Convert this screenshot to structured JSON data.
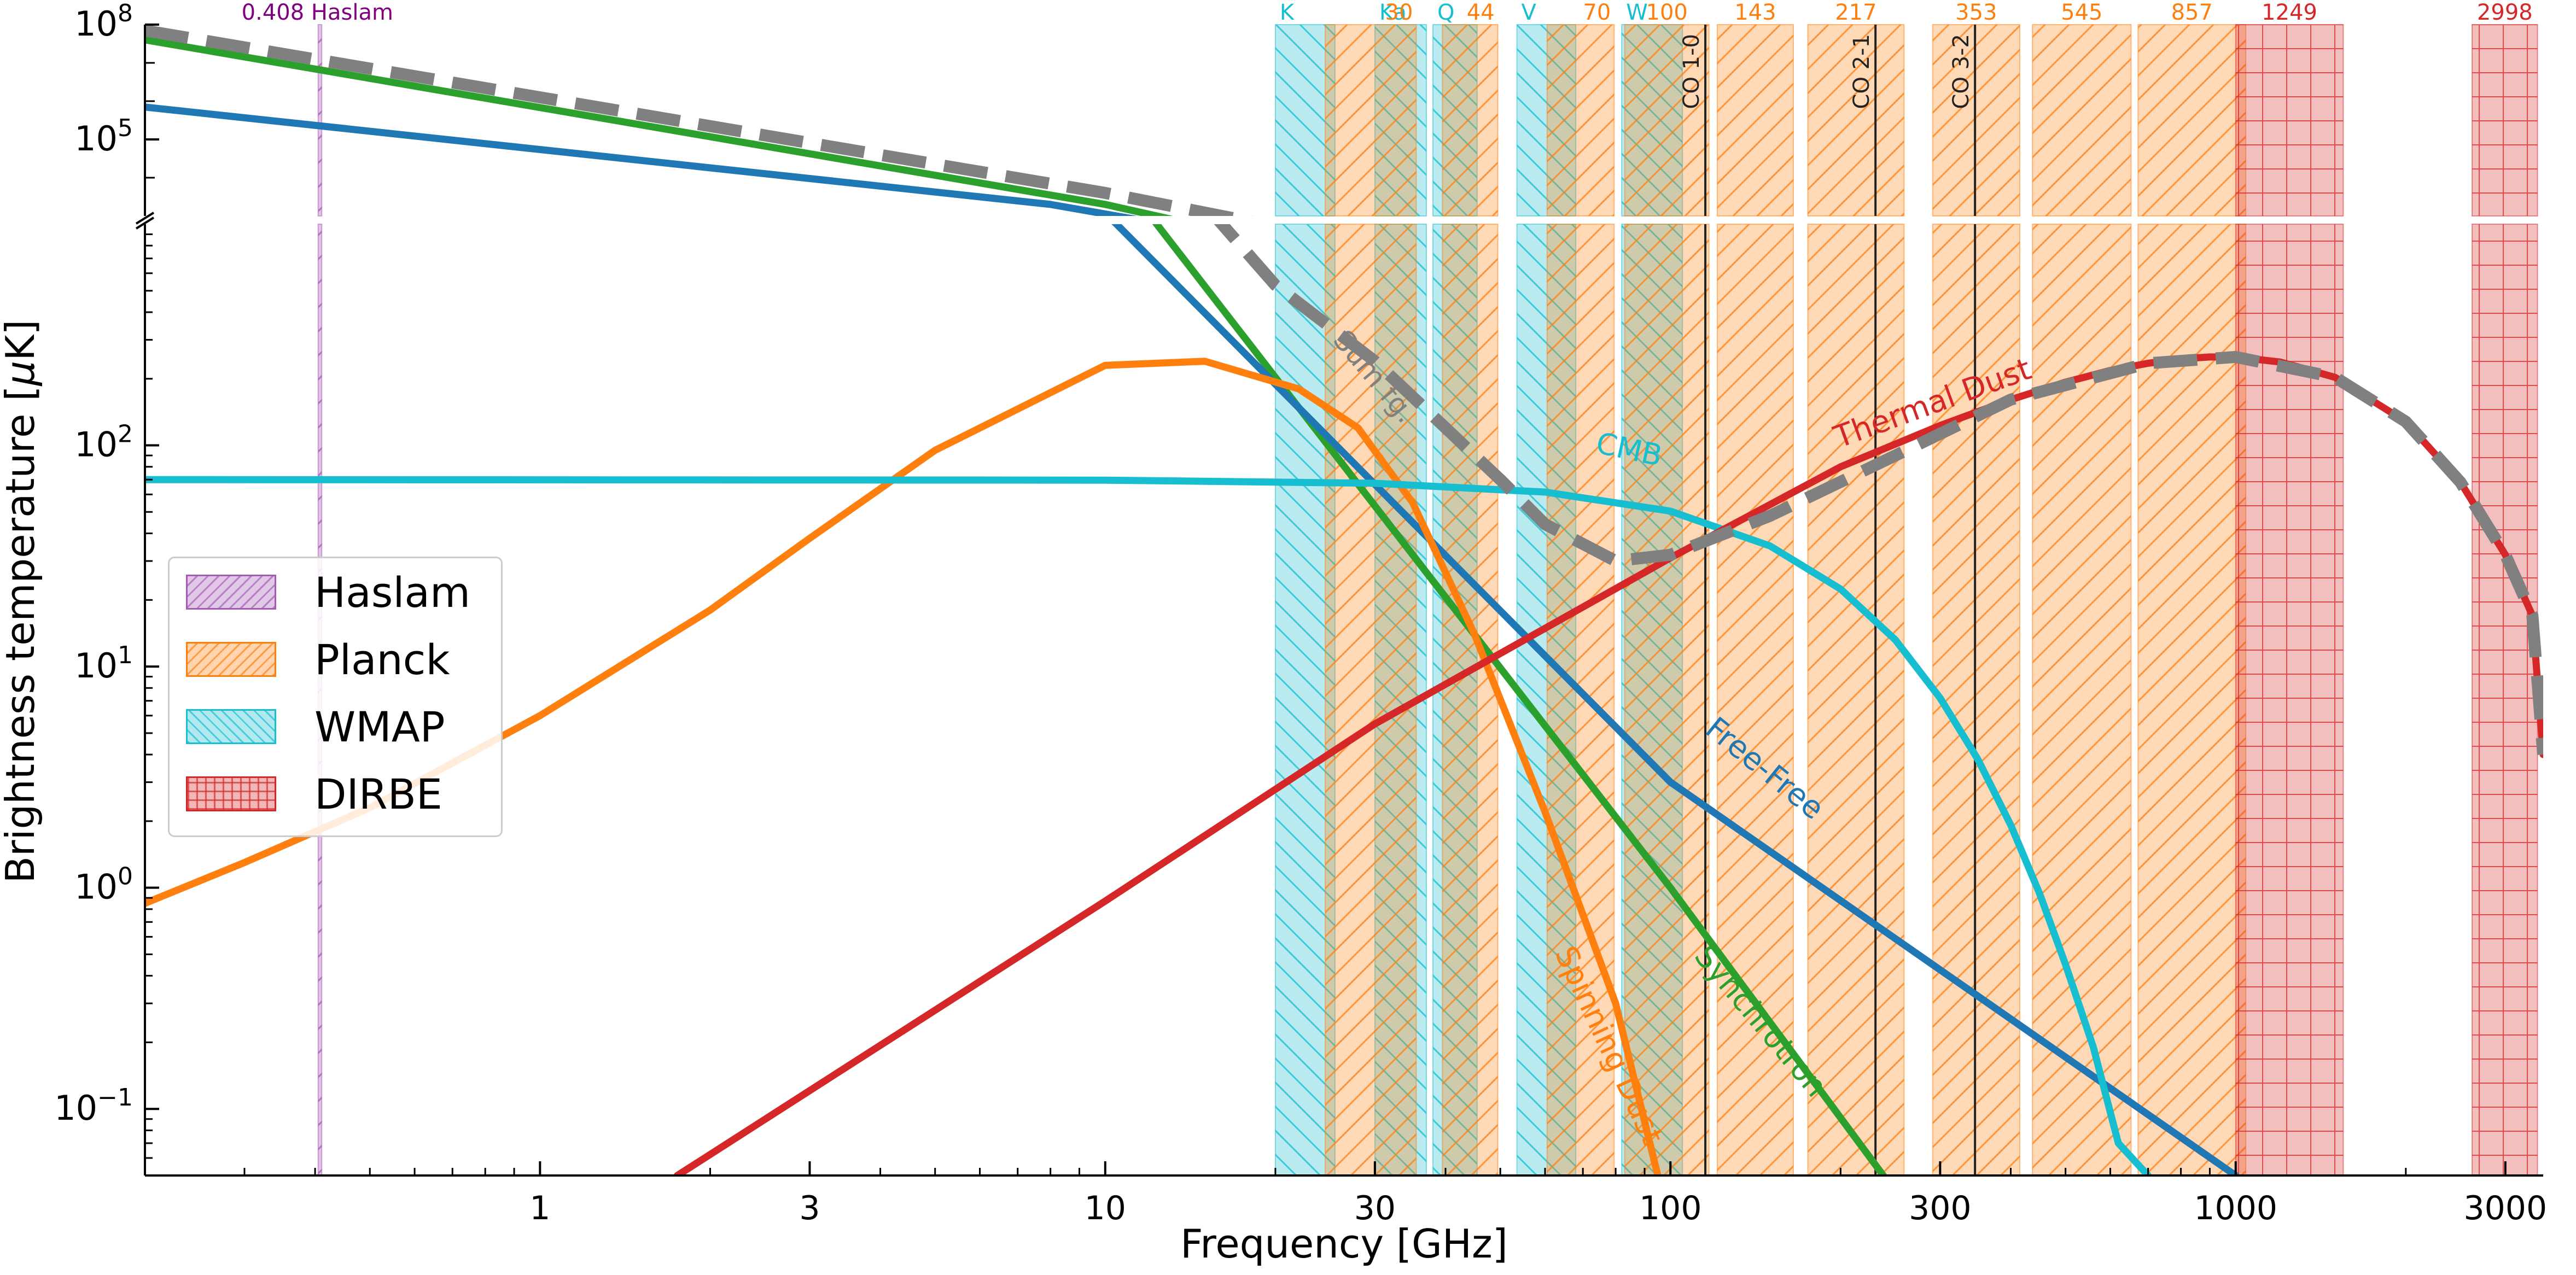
{
  "chart_data": {
    "type": "line",
    "title": "",
    "xlabel": "Frequency [GHz]",
    "ylabel": "Brightness temperature [μK]",
    "ylabel_parts": {
      "prefix": "Brightness temperature [",
      "mu": "μ",
      "suffix": "K]"
    },
    "xscale": "log",
    "yscale": "log, broken axis",
    "xlim": [
      0.2,
      3500
    ],
    "ylim_lower": [
      0.05,
      1000
    ],
    "ylim_upper": [
      1000,
      100000000
    ],
    "x_ticks": [
      {
        "value": 1,
        "label": "1"
      },
      {
        "value": 3,
        "label": "3"
      },
      {
        "value": 10,
        "label": "10"
      },
      {
        "value": 30,
        "label": "30"
      },
      {
        "value": 100,
        "label": "100"
      },
      {
        "value": 300,
        "label": "300"
      },
      {
        "value": 1000,
        "label": "1000"
      },
      {
        "value": 3000,
        "label": "3000"
      }
    ],
    "y_ticks_lower": [
      {
        "value": 0.1,
        "base": "10",
        "exp": "−1"
      },
      {
        "value": 1,
        "base": "10",
        "exp": "0"
      },
      {
        "value": 10,
        "base": "10",
        "exp": "1"
      },
      {
        "value": 100,
        "base": "10",
        "exp": "2"
      }
    ],
    "y_ticks_upper": [
      {
        "value": 100000,
        "base": "10",
        "exp": "5"
      },
      {
        "value": 100000000,
        "base": "10",
        "exp": "8"
      }
    ],
    "bands": [
      {
        "name": "Haslam",
        "label": "0.408 Haslam",
        "x0": 0.405,
        "x1": 0.411,
        "color": "#a55ab5",
        "hatch": "diag-down",
        "label_color": "#800080"
      },
      {
        "name": "WMAP",
        "label": "K",
        "x0": 20.0,
        "x1": 25.5,
        "color": "#17becf",
        "hatch": "diag-up",
        "label_color": "#17becf"
      },
      {
        "name": "WMAP",
        "label": "Ka",
        "x0": 30.0,
        "x1": 37.0,
        "color": "#17becf",
        "hatch": "diag-up",
        "label_color": "#17becf"
      },
      {
        "name": "WMAP",
        "label": "Q",
        "x0": 38.0,
        "x1": 45.5,
        "color": "#17becf",
        "hatch": "diag-up",
        "label_color": "#17becf"
      },
      {
        "name": "WMAP",
        "label": "V",
        "x0": 53.5,
        "x1": 68.0,
        "color": "#17becf",
        "hatch": "diag-up",
        "label_color": "#17becf"
      },
      {
        "name": "WMAP",
        "label": "W",
        "x0": 82.0,
        "x1": 105.0,
        "color": "#17becf",
        "hatch": "diag-up",
        "label_color": "#17becf"
      },
      {
        "name": "Planck",
        "label": "30",
        "x0": 24.5,
        "x1": 35.5,
        "color": "#ff7f0e",
        "hatch": "diag-down",
        "label_color": "#ff7f0e"
      },
      {
        "name": "Planck",
        "label": "44",
        "x0": 39.5,
        "x1": 49.5,
        "color": "#ff7f0e",
        "hatch": "diag-down",
        "label_color": "#ff7f0e"
      },
      {
        "name": "Planck",
        "label": "70",
        "x0": 60.5,
        "x1": 79.5,
        "color": "#ff7f0e",
        "hatch": "diag-down",
        "label_color": "#ff7f0e"
      },
      {
        "name": "Planck",
        "label": "100",
        "x0": 83.0,
        "x1": 117.0,
        "color": "#ff7f0e",
        "hatch": "diag-down",
        "label_color": "#ff7f0e"
      },
      {
        "name": "Planck",
        "label": "143",
        "x0": 121.0,
        "x1": 165.0,
        "color": "#ff7f0e",
        "hatch": "diag-down",
        "label_color": "#ff7f0e"
      },
      {
        "name": "Planck",
        "label": "217",
        "x0": 175.0,
        "x1": 259.0,
        "color": "#ff7f0e",
        "hatch": "diag-down",
        "label_color": "#ff7f0e"
      },
      {
        "name": "Planck",
        "label": "353",
        "x0": 291.0,
        "x1": 415.0,
        "color": "#ff7f0e",
        "hatch": "diag-down",
        "label_color": "#ff7f0e"
      },
      {
        "name": "Planck",
        "label": "545",
        "x0": 437.0,
        "x1": 653.0,
        "color": "#ff7f0e",
        "hatch": "diag-down",
        "label_color": "#ff7f0e"
      },
      {
        "name": "Planck",
        "label": "857",
        "x0": 672.0,
        "x1": 1042.0,
        "color": "#ff7f0e",
        "hatch": "diag-down",
        "label_color": "#ff7f0e"
      },
      {
        "name": "DIRBE",
        "label": "1249",
        "x0": 1000.0,
        "x1": 1550.0,
        "color": "#d62728",
        "hatch": "grid",
        "label_color": "#d62728"
      },
      {
        "name": "DIRBE",
        "label": "2998",
        "x0": 2620.0,
        "x1": 3420.0,
        "color": "#d62728",
        "hatch": "grid",
        "label_color": "#d62728"
      }
    ],
    "co_lines": [
      {
        "label": "CO 1-0",
        "x": 115.27
      },
      {
        "label": "CO 2-1",
        "x": 230.54
      },
      {
        "label": "CO 3-2",
        "x": 345.8
      }
    ],
    "series": [
      {
        "name": "Synchrotron",
        "color": "#2ca02c",
        "width": 13,
        "dash": false,
        "x": [
          0.2,
          10,
          100,
          238
        ],
        "y": [
          40000000,
          2000,
          1.0,
          0.05
        ]
      },
      {
        "name": "Free-Free",
        "color": "#1f77b4",
        "width": 13,
        "dash": false,
        "x": [
          0.2,
          8,
          100,
          1000
        ],
        "y": [
          700000,
          2000,
          3.0,
          0.05
        ]
      },
      {
        "name": "Spinning Dust",
        "color": "#ff7f0e",
        "width": 13,
        "dash": false,
        "x": [
          0.2,
          0.3,
          0.5,
          1,
          2,
          3,
          5,
          10,
          15,
          22,
          28,
          35,
          45,
          60,
          80,
          95
        ],
        "y": [
          0.85,
          1.3,
          2.3,
          6,
          18,
          38,
          95,
          230,
          240,
          180,
          120,
          55,
          14,
          2.2,
          0.3,
          0.05
        ]
      },
      {
        "name": "CMB",
        "color": "#17becf",
        "width": 13,
        "dash": false,
        "x": [
          0.2,
          10,
          30,
          60,
          100,
          150,
          200,
          250,
          300,
          350,
          400,
          450,
          500,
          560,
          620,
          700
        ],
        "y": [
          70,
          69.6,
          67.4,
          61.5,
          50.4,
          35.1,
          22.4,
          13.2,
          7.2,
          3.8,
          1.92,
          0.94,
          0.45,
          0.19,
          0.07,
          0.05
        ]
      },
      {
        "name": "Thermal Dust",
        "color": "#d62728",
        "width": 13,
        "dash": false,
        "x": [
          1.75,
          10,
          30,
          100,
          200,
          300,
          400,
          500,
          600,
          700,
          800,
          900,
          1000,
          1200,
          1500,
          2000,
          2500,
          3000,
          3350,
          3500
        ],
        "y": [
          0.05,
          0.87,
          5.5,
          31,
          80,
          123,
          161,
          193,
          218,
          235,
          246,
          251,
          251,
          238,
          203,
          128,
          68,
          32,
          17,
          4
        ]
      },
      {
        "name": "Sum fg.",
        "color": "#808080",
        "width": 22,
        "dash": true,
        "x": [
          0.2,
          10,
          20,
          30,
          40,
          50,
          60,
          80,
          100,
          150,
          250,
          400,
          700,
          1000,
          1500,
          2000,
          2500,
          3000,
          3350,
          3500
        ],
        "y": [
          70000000,
          4000,
          530,
          240,
          120,
          70,
          44,
          30,
          32,
          48,
          90,
          161,
          235,
          251,
          203,
          128,
          68,
          32,
          17,
          4
        ]
      }
    ],
    "curve_labels": [
      {
        "text": "Sum fg.",
        "color": "#808080"
      },
      {
        "text": "CMB",
        "color": "#17becf"
      },
      {
        "text": "Thermal Dust",
        "color": "#d62728"
      },
      {
        "text": "Free-Free",
        "color": "#1f77b4"
      },
      {
        "text": "Synchrotron",
        "color": "#2ca02c"
      },
      {
        "text": "Spinning Dust",
        "color": "#ff7f0e"
      }
    ],
    "legend": {
      "placement": "center-left",
      "entries": [
        {
          "label": "Haslam",
          "color": "#a55ab5",
          "hatch": "diag-down"
        },
        {
          "label": "Planck",
          "color": "#ff7f0e",
          "hatch": "diag-down"
        },
        {
          "label": "WMAP",
          "color": "#17becf",
          "hatch": "diag-up"
        },
        {
          "label": "DIRBE",
          "color": "#d62728",
          "hatch": "grid"
        }
      ]
    },
    "grid": false
  }
}
